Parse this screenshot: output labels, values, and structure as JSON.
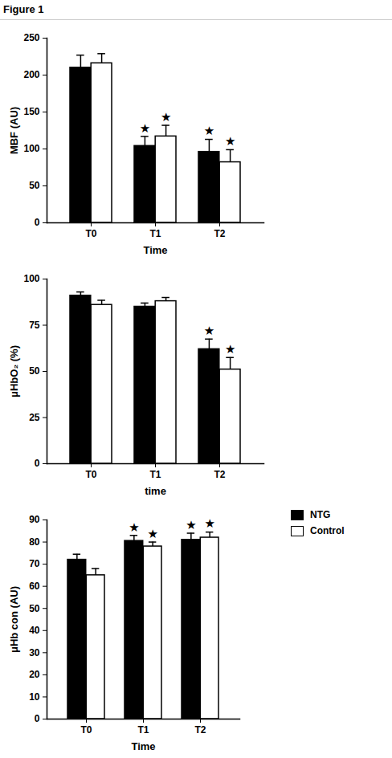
{
  "title": "Figure 1",
  "chart_data": [
    {
      "type": "bar",
      "x_label": "Time",
      "y_label": "MBF (AU)",
      "categories": [
        "T0",
        "T1",
        "T2"
      ],
      "ylim": [
        0,
        250
      ],
      "yticks": [
        0,
        50,
        100,
        150,
        200,
        250
      ],
      "series": [
        {
          "name": "NTG",
          "color": "#000000",
          "values": [
            210,
            104,
            96
          ],
          "errors": [
            17,
            13,
            17
          ],
          "annotations": [
            null,
            "★",
            "★"
          ]
        },
        {
          "name": "Control",
          "color": "#ffffff",
          "values": [
            216,
            117,
            82
          ],
          "errors": [
            13,
            15,
            17
          ],
          "annotations": [
            null,
            "★",
            "★"
          ]
        }
      ]
    },
    {
      "type": "bar",
      "x_label": "time",
      "y_label": "μHbO₂ (%)",
      "categories": [
        "T0",
        "T1",
        "T2"
      ],
      "ylim": [
        0,
        100
      ],
      "yticks": [
        0,
        25,
        50,
        75,
        100
      ],
      "series": [
        {
          "name": "NTG",
          "color": "#000000",
          "values": [
            91,
            85,
            62
          ],
          "errors": [
            2,
            2,
            5.5
          ],
          "annotations": [
            null,
            null,
            "★"
          ]
        },
        {
          "name": "Control",
          "color": "#ffffff",
          "values": [
            86,
            88,
            51
          ],
          "errors": [
            2.5,
            2,
            6.5
          ],
          "annotations": [
            null,
            null,
            "★"
          ]
        }
      ]
    },
    {
      "type": "bar",
      "x_label": "Time",
      "y_label": "μHb con (AU)",
      "categories": [
        "T0",
        "T1",
        "T2"
      ],
      "ylim": [
        0,
        90
      ],
      "yticks": [
        0,
        10,
        20,
        30,
        40,
        50,
        60,
        70,
        80,
        90
      ],
      "legend": "right",
      "series": [
        {
          "name": "NTG",
          "color": "#000000",
          "values": [
            72,
            80.5,
            81
          ],
          "errors": [
            2.5,
            2.5,
            3
          ],
          "annotations": [
            null,
            "★",
            "★"
          ]
        },
        {
          "name": "Control",
          "color": "#ffffff",
          "values": [
            65,
            78,
            82
          ],
          "errors": [
            3,
            2,
            2.5
          ],
          "annotations": [
            null,
            "★",
            "★"
          ]
        }
      ]
    }
  ]
}
